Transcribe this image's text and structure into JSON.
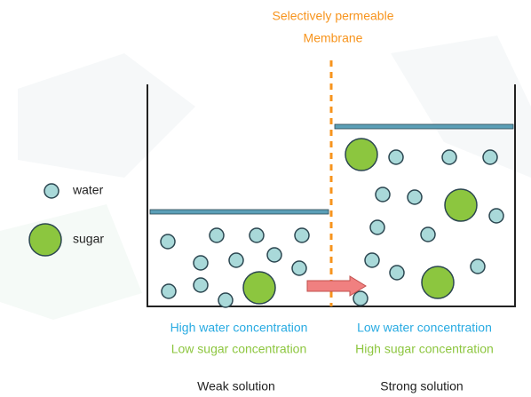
{
  "membrane": {
    "label_lines": [
      "Selectively permeable",
      "Membrane"
    ]
  },
  "legend": {
    "water": "water",
    "sugar": "sugar"
  },
  "left": {
    "line1": "High water concentration",
    "line2": "Low sugar concentration",
    "caption": "Weak solution"
  },
  "right": {
    "line1": "Low water concentration",
    "line2": "High sugar concentration",
    "caption": "Strong solution"
  }
}
